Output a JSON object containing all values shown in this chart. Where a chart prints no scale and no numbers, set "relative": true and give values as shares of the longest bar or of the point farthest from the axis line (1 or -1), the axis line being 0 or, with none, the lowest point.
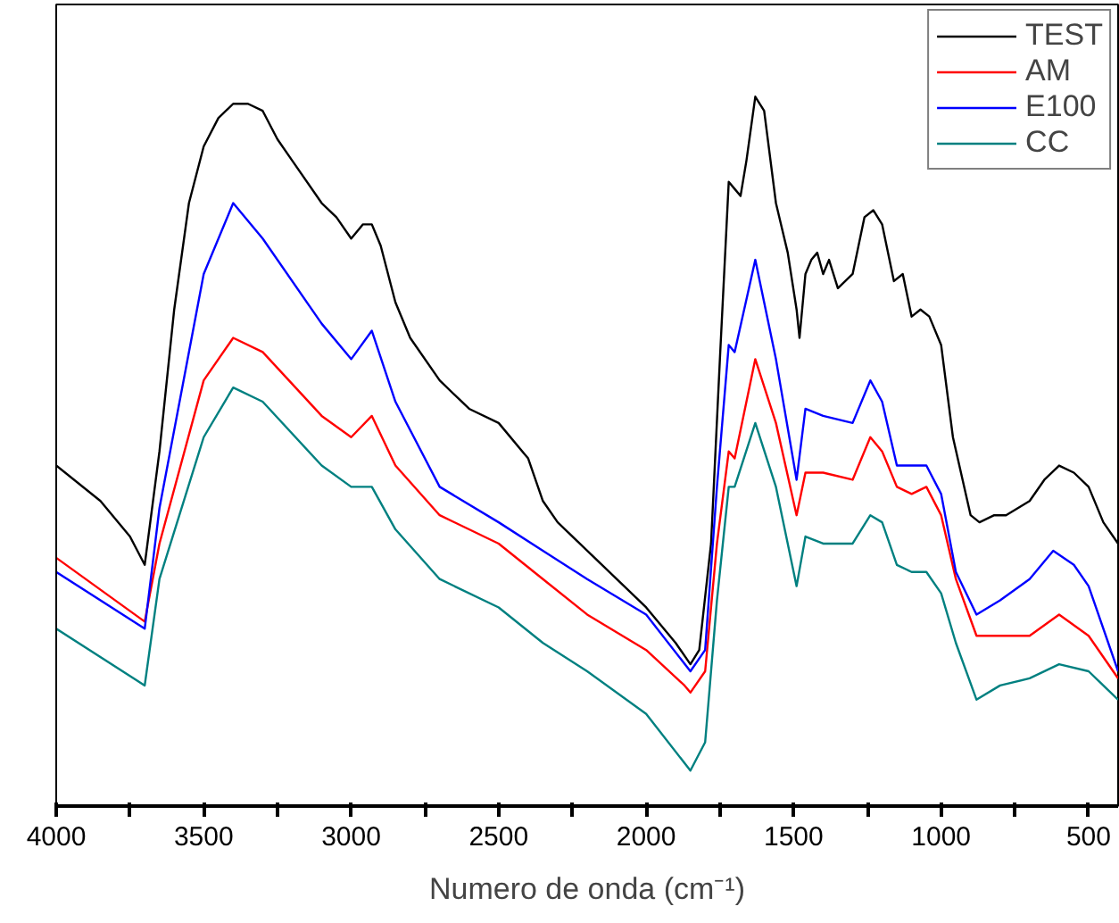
{
  "chart_data": {
    "type": "line",
    "relative": true,
    "xlabel": "Numero de onda (cm⁻¹)",
    "xlim": [
      4000,
      400
    ],
    "xticks": [
      4000,
      {
        "value": 3750,
        "label": null
      },
      3500,
      {
        "value": 3250,
        "label": null
      },
      3000,
      {
        "value": 2750,
        "label": null
      },
      2500,
      {
        "value": 2250,
        "label": null
      },
      2000,
      {
        "value": 1750,
        "label": null
      },
      1500,
      {
        "value": 1250,
        "label": null
      },
      1000,
      {
        "value": 750,
        "label": null
      },
      500
    ],
    "tick_labels": "x",
    "grid": false,
    "legend": "top right",
    "marker": "none",
    "line_style": "solid",
    "series": [
      {
        "name": "TEST",
        "color": "#000000",
        "x": [
          4000,
          3850,
          3750,
          3700,
          3650,
          3600,
          3550,
          3500,
          3450,
          3400,
          3350,
          3300,
          3250,
          3200,
          3100,
          3050,
          3000,
          2960,
          2930,
          2900,
          2850,
          2800,
          2700,
          2600,
          2500,
          2400,
          2350,
          2300,
          2200,
          2100,
          2000,
          1900,
          1850,
          1820,
          1780,
          1750,
          1720,
          1700,
          1680,
          1660,
          1630,
          1600,
          1560,
          1520,
          1490,
          1480,
          1460,
          1440,
          1420,
          1400,
          1380,
          1350,
          1300,
          1260,
          1230,
          1200,
          1160,
          1130,
          1100,
          1070,
          1040,
          1000,
          960,
          900,
          870,
          820,
          780,
          700,
          650,
          600,
          550,
          500,
          450,
          400
        ],
        "values": [
          0.48,
          0.43,
          0.38,
          0.34,
          0.5,
          0.7,
          0.85,
          0.93,
          0.97,
          0.99,
          0.99,
          0.98,
          0.94,
          0.91,
          0.85,
          0.83,
          0.8,
          0.82,
          0.82,
          0.79,
          0.71,
          0.66,
          0.6,
          0.56,
          0.54,
          0.49,
          0.43,
          0.4,
          0.36,
          0.32,
          0.28,
          0.23,
          0.2,
          0.22,
          0.37,
          0.63,
          0.88,
          0.87,
          0.86,
          0.91,
          1.0,
          0.98,
          0.85,
          0.78,
          0.7,
          0.66,
          0.75,
          0.77,
          0.78,
          0.75,
          0.77,
          0.73,
          0.75,
          0.83,
          0.84,
          0.82,
          0.74,
          0.75,
          0.69,
          0.7,
          0.69,
          0.65,
          0.52,
          0.41,
          0.4,
          0.41,
          0.41,
          0.43,
          0.46,
          0.48,
          0.47,
          0.45,
          0.4,
          0.37
        ]
      },
      {
        "name": "AM",
        "color": "#ff0000",
        "x": [
          4000,
          3700,
          3650,
          3500,
          3400,
          3300,
          3100,
          3000,
          2930,
          2850,
          2700,
          2500,
          2350,
          2200,
          2000,
          1870,
          1850,
          1800,
          1760,
          1720,
          1700,
          1630,
          1560,
          1490,
          1460,
          1400,
          1300,
          1240,
          1200,
          1150,
          1100,
          1050,
          1000,
          950,
          880,
          800,
          700,
          600,
          500,
          400
        ],
        "values": [
          0.35,
          0.26,
          0.37,
          0.6,
          0.66,
          0.64,
          0.55,
          0.52,
          0.55,
          0.48,
          0.41,
          0.37,
          0.32,
          0.27,
          0.22,
          0.17,
          0.16,
          0.19,
          0.37,
          0.5,
          0.49,
          0.63,
          0.54,
          0.41,
          0.47,
          0.47,
          0.46,
          0.52,
          0.5,
          0.45,
          0.44,
          0.45,
          0.41,
          0.32,
          0.24,
          0.24,
          0.24,
          0.27,
          0.24,
          0.18
        ]
      },
      {
        "name": "E100",
        "color": "#0000ff",
        "x": [
          4000,
          3700,
          3650,
          3500,
          3400,
          3300,
          3100,
          3000,
          2930,
          2850,
          2700,
          2500,
          2350,
          2200,
          2000,
          1850,
          1800,
          1760,
          1720,
          1700,
          1630,
          1560,
          1490,
          1460,
          1400,
          1300,
          1240,
          1200,
          1150,
          1100,
          1050,
          1000,
          950,
          880,
          800,
          700,
          620,
          550,
          500,
          400
        ],
        "values": [
          0.33,
          0.25,
          0.42,
          0.75,
          0.85,
          0.8,
          0.68,
          0.63,
          0.67,
          0.57,
          0.45,
          0.4,
          0.36,
          0.32,
          0.27,
          0.19,
          0.22,
          0.45,
          0.65,
          0.64,
          0.77,
          0.63,
          0.46,
          0.56,
          0.55,
          0.54,
          0.6,
          0.57,
          0.48,
          0.48,
          0.48,
          0.44,
          0.33,
          0.27,
          0.29,
          0.32,
          0.36,
          0.34,
          0.31,
          0.19
        ]
      },
      {
        "name": "CC",
        "color": "#008080",
        "x": [
          4000,
          3700,
          3650,
          3500,
          3400,
          3300,
          3100,
          3000,
          2930,
          2850,
          2700,
          2500,
          2350,
          2200,
          2000,
          1850,
          1800,
          1760,
          1720,
          1700,
          1630,
          1560,
          1490,
          1460,
          1400,
          1300,
          1240,
          1200,
          1150,
          1100,
          1050,
          1000,
          950,
          880,
          800,
          700,
          600,
          500,
          400
        ],
        "values": [
          0.25,
          0.17,
          0.32,
          0.52,
          0.59,
          0.57,
          0.48,
          0.45,
          0.45,
          0.39,
          0.32,
          0.28,
          0.23,
          0.19,
          0.13,
          0.05,
          0.09,
          0.29,
          0.45,
          0.45,
          0.54,
          0.45,
          0.31,
          0.38,
          0.37,
          0.37,
          0.41,
          0.4,
          0.34,
          0.33,
          0.33,
          0.3,
          0.23,
          0.15,
          0.17,
          0.18,
          0.2,
          0.19,
          0.15
        ]
      }
    ]
  }
}
